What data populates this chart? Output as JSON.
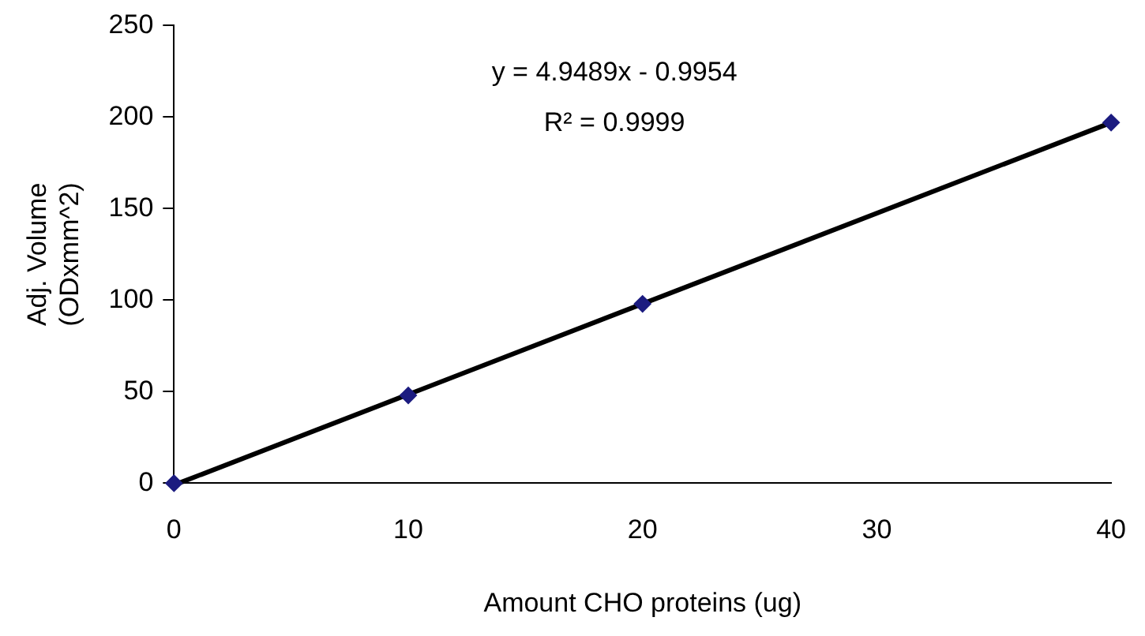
{
  "chart_data": {
    "type": "scatter",
    "xlabel": "Amount CHO proteins (ug)",
    "ylabel": "Adj. Volume\n(ODxmm^2)",
    "xlim": [
      0,
      40
    ],
    "xticks": [
      0,
      10,
      20,
      30,
      40
    ],
    "ylim": [
      0,
      250
    ],
    "yticks": [
      0,
      50,
      100,
      150,
      200,
      250
    ],
    "grid": false,
    "legend": false,
    "marker": "diamond",
    "series": [
      {
        "color": "#1c1c80",
        "x": [
          0,
          10,
          20,
          40
        ],
        "values": [
          0,
          48,
          98,
          197
        ]
      },
      {
        "type": "line",
        "color": "#000000",
        "x": [
          0.2,
          40
        ],
        "values": [
          0,
          197
        ],
        "marker": "none",
        "line_style": "solid"
      }
    ],
    "annotations": [
      "y = 4.9489x - 0.9954",
      "R² = 0.9999"
    ]
  }
}
